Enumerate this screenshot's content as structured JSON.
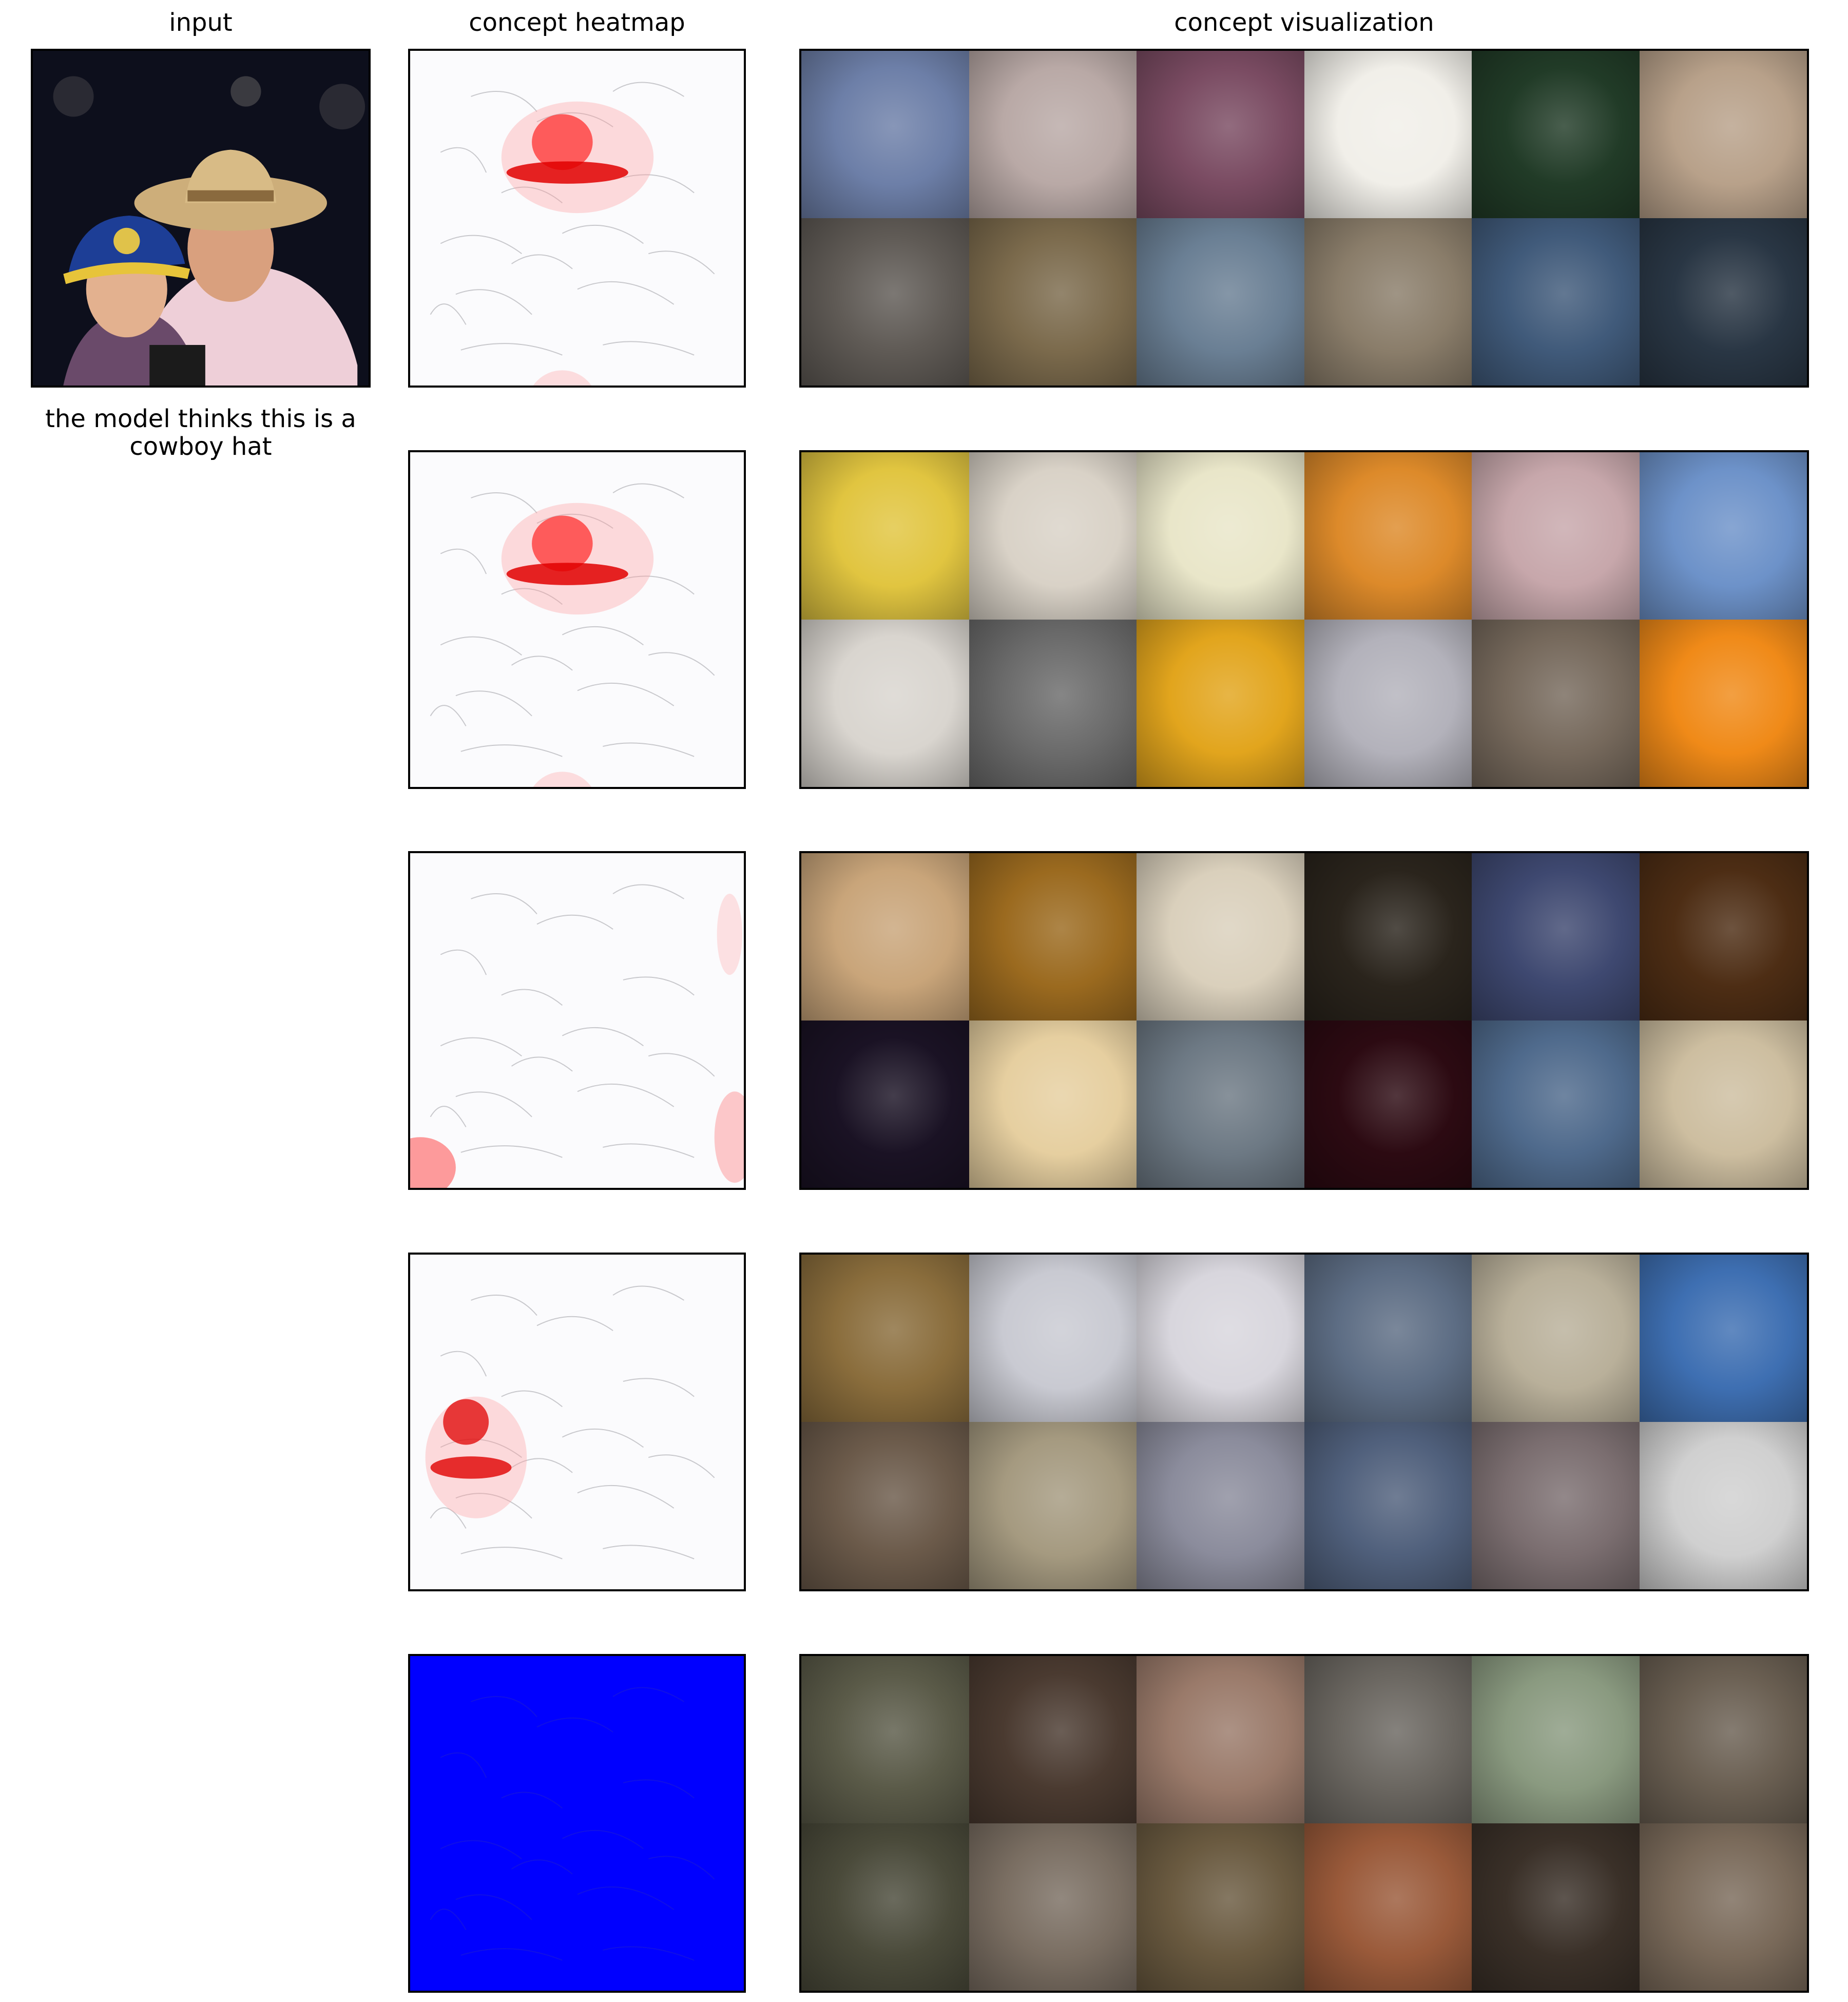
{
  "headers": {
    "input": "input",
    "heatmap": "concept heatmap",
    "visualization": "concept visualization"
  },
  "caption": "the model thinks this is a cowboy hat",
  "rows": [
    {
      "heatmap": "hat-focus",
      "tiles": [
        "#6d7fa8",
        "#b9a9a6",
        "#7a4b62",
        "#f1efe9",
        "#213b27",
        "#b8a18a",
        "#5f5a55",
        "#7b6a4c",
        "#6a7f94",
        "#8a7d6a",
        "#405a7a",
        "#293644"
      ]
    },
    {
      "heatmap": "hat-focus",
      "tiles": [
        "#e1c540",
        "#d9d2c7",
        "#e9e6c9",
        "#dd8a2a",
        "#c7a7ab",
        "#6d92c9",
        "#d9d5cf",
        "#6b6b6b",
        "#e2a51d",
        "#b3b2bb",
        "#76695c",
        "#f08a18"
      ]
    },
    {
      "heatmap": "edges",
      "tiles": [
        "#c9a57a",
        "#9b6a1f",
        "#dad0bc",
        "#2a241c",
        "#3e4870",
        "#4d2d14",
        "#1a1224",
        "#e6cfa0",
        "#6d7984",
        "#2c0a12",
        "#4f6a8c",
        "#cdbea0"
      ]
    },
    {
      "heatmap": "cap-focus",
      "tiles": [
        "#8a6d3c",
        "#c9cad2",
        "#d8d6dd",
        "#5d6d84",
        "#b9b09a",
        "#3e6fb2",
        "#6b5a4a",
        "#a59a80",
        "#8b8c9c",
        "#50607c",
        "#7b6e70",
        "#d0d0d0"
      ]
    },
    {
      "heatmap": "negative",
      "tiles": [
        "#5a5a48",
        "#4a3a30",
        "#9a7a6a",
        "#6a6660",
        "#8a9a80",
        "#6a5f52",
        "#4a4a3a",
        "#7a6e62",
        "#6a5a40",
        "#9a5a3a",
        "#3a3028",
        "#7a6a5a"
      ]
    }
  ]
}
